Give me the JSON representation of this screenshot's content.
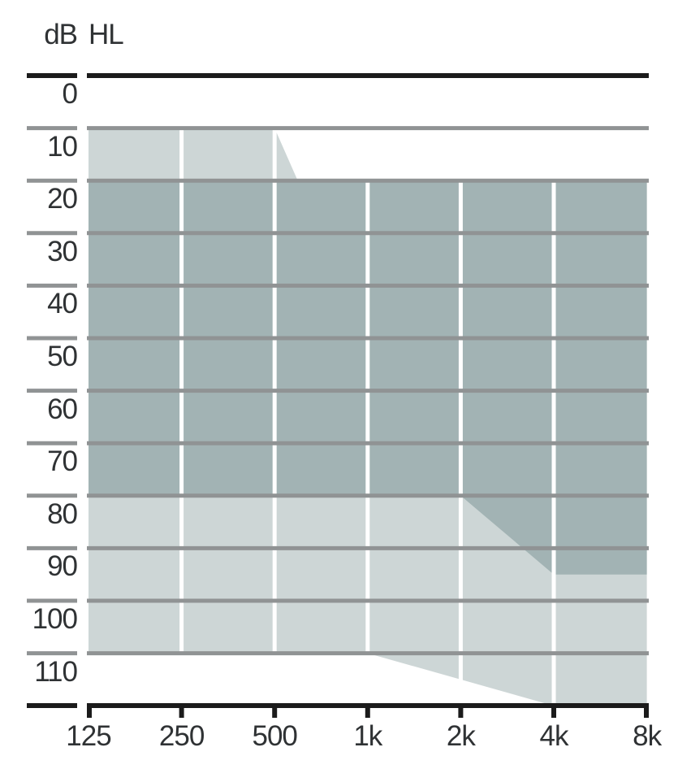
{
  "chart_data": {
    "type": "area",
    "description": "Audiogram fitting range chart, hearing level in dB HL versus frequency in Hz",
    "y_axis": {
      "unit_db": "dB",
      "unit_hl": "HL",
      "tick_labels": [
        "0",
        "10",
        "20",
        "30",
        "40",
        "50",
        "60",
        "70",
        "80",
        "90",
        "100",
        "110"
      ],
      "tick_values": [
        0,
        10,
        20,
        30,
        40,
        50,
        60,
        70,
        80,
        90,
        100,
        110
      ],
      "range_db": [
        0,
        120
      ],
      "grid": true
    },
    "x_axis": {
      "tick_labels": [
        "125",
        "250",
        "500",
        "1k",
        "2k",
        "4k",
        "8k"
      ],
      "tick_values_hz": [
        125,
        250,
        500,
        1000,
        2000,
        4000,
        8000
      ],
      "scale": "log2",
      "range_hz": [
        125,
        8000
      ]
    },
    "regions": [
      {
        "name": "outer-range-light",
        "color": "#cdd6d6",
        "points_hz_db": [
          [
            125,
            10
          ],
          [
            500,
            10
          ],
          [
            594,
            20
          ],
          [
            8000,
            20
          ],
          [
            8000,
            120
          ],
          [
            4000,
            120
          ],
          [
            1000,
            110
          ],
          [
            125,
            110
          ]
        ]
      },
      {
        "name": "inner-range-dark",
        "color": "#a2b3b4",
        "points_hz_db": [
          [
            125,
            20
          ],
          [
            8000,
            20
          ],
          [
            8000,
            95
          ],
          [
            4000,
            95
          ],
          [
            2000,
            80
          ],
          [
            125,
            80
          ]
        ]
      }
    ],
    "colors": {
      "background": "#ffffff",
      "grid_line": "#909394",
      "axis_line": "#1b1b1b",
      "vertical_grid_line": "#ffffff",
      "tick_label": "#2f3234"
    }
  }
}
